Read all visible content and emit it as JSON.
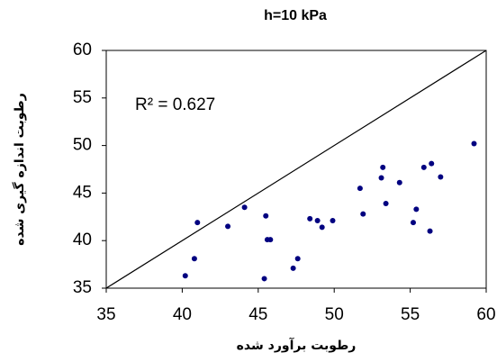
{
  "chart_data": {
    "type": "scatter",
    "title": "h=10 kPa",
    "x_label": "رطوبت برآورد شده",
    "y_label": "رطوبت اندازه گیری شده",
    "annotation": "R² = 0.627",
    "color": "#000080",
    "x": [
      40.2,
      40.8,
      41.0,
      43.0,
      44.1,
      45.5,
      45.6,
      45.8,
      45.4,
      47.3,
      47.6,
      48.4,
      48.9,
      49.2,
      49.9,
      51.7,
      51.9,
      53.1,
      53.2,
      53.4,
      54.3,
      55.2,
      55.4,
      55.9,
      56.4,
      56.3,
      57.0,
      59.2
    ],
    "values": [
      36.3,
      38.1,
      41.9,
      41.5,
      43.5,
      42.6,
      40.1,
      40.1,
      36.0,
      37.1,
      38.1,
      42.3,
      42.1,
      41.4,
      42.1,
      45.5,
      42.8,
      46.6,
      47.7,
      43.9,
      46.1,
      41.9,
      43.3,
      47.7,
      48.1,
      41.0,
      46.7,
      50.2
    ],
    "xlim": [
      35,
      60
    ],
    "ylim": [
      35,
      60
    ],
    "xticks": [
      35,
      40,
      45,
      50,
      55,
      60
    ],
    "yticks": [
      35,
      40,
      45,
      50,
      55,
      60
    ]
  }
}
